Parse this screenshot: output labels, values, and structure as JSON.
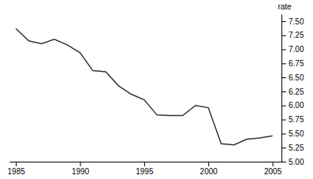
{
  "chart_data": {
    "type": "line",
    "ylabel": "rate",
    "x": [
      1985,
      1986,
      1987,
      1988,
      1989,
      1990,
      1991,
      1992,
      1993,
      1994,
      1995,
      1996,
      1997,
      1998,
      1999,
      2000,
      2001,
      2002,
      2003,
      2004,
      2005
    ],
    "values": [
      7.37,
      7.15,
      7.1,
      7.18,
      7.08,
      6.94,
      6.62,
      6.6,
      6.35,
      6.2,
      6.1,
      5.83,
      5.82,
      5.82,
      6.0,
      5.96,
      5.32,
      5.3,
      5.4,
      5.42,
      5.46
    ],
    "color": "#333333",
    "xlim": [
      1984.5,
      2005.7
    ],
    "xticks": [
      1985,
      1990,
      1995,
      2000,
      2005
    ],
    "ylim": [
      5.0,
      7.625
    ],
    "yticks": [
      {
        "value": 5.0,
        "label": "5.00"
      },
      5.25,
      {
        "value": 5.5,
        "label": "5.50"
      },
      5.75,
      {
        "value": 6.0,
        "label": "6.00"
      },
      6.25,
      {
        "value": 6.5,
        "label": "6.50"
      },
      6.75,
      {
        "value": 7.0,
        "label": "7.00"
      },
      7.25,
      {
        "value": 7.5,
        "label": "7.50"
      }
    ],
    "grid": false
  }
}
